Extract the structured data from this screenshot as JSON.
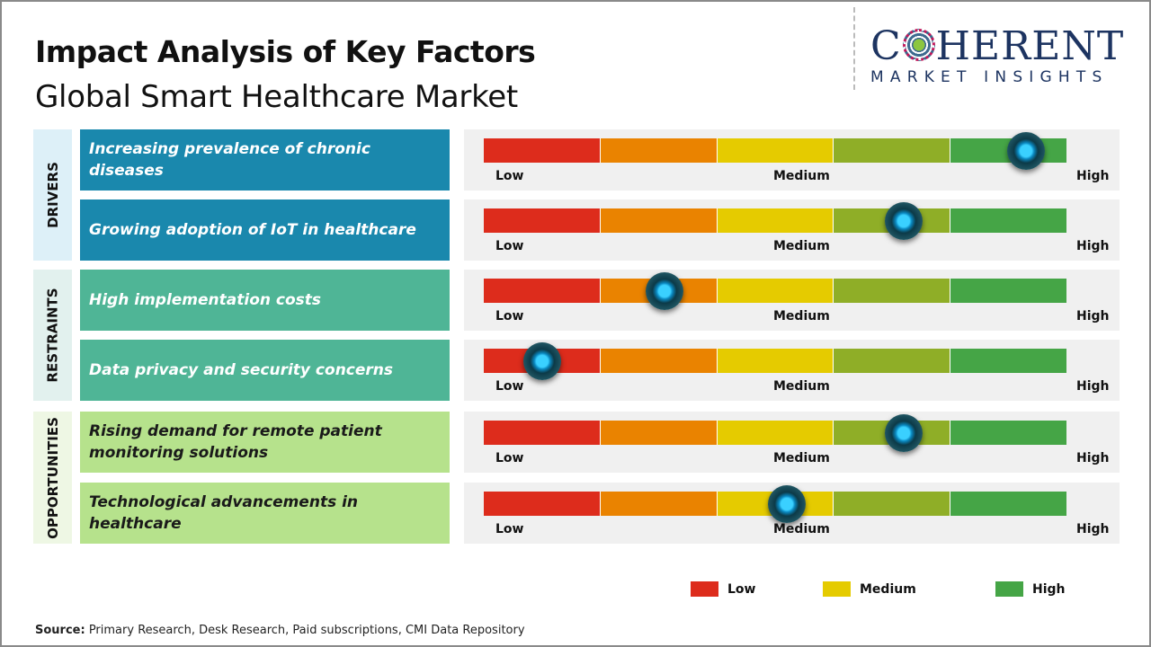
{
  "title": "Impact Analysis of Key Factors",
  "subtitle": "Global Smart Healthcare Market",
  "logo": {
    "line1_a": "C",
    "line1_b": "HERENT",
    "line2": "MARKET INSIGHTS"
  },
  "colors": {
    "scale": [
      "#dd2c1c",
      "#ea8300",
      "#e5cb00",
      "#8fae27",
      "#45a546"
    ],
    "drivers": "#1a88ad",
    "drivers_side": "#ddf0f8",
    "restraints": "#4fb596",
    "restraints_side": "#e2f1ee",
    "opportunities": "#b6e28c",
    "opportunities_side": "#eef7e4"
  },
  "chart_data": {
    "type": "gauge-scale",
    "scale_labels": {
      "low": "Low",
      "medium": "Medium",
      "high": "High"
    },
    "groups": [
      {
        "name": "DRIVERS",
        "key": "drivers",
        "items": [
          {
            "label": "Increasing prevalence of chronic diseases",
            "impact": 0.93
          },
          {
            "label": "Growing adoption of IoT in healthcare",
            "impact": 0.72
          }
        ]
      },
      {
        "name": "RESTRAINTS",
        "key": "restraints",
        "items": [
          {
            "label": "High implementation costs",
            "impact": 0.31
          },
          {
            "label": "Data privacy and security concerns",
            "impact": 0.1
          }
        ]
      },
      {
        "name": "OPPORTUNITIES",
        "key": "opportunities",
        "items": [
          {
            "label": "Rising demand for remote patient monitoring solutions",
            "impact": 0.72
          },
          {
            "label": "Technological advancements in healthcare",
            "impact": 0.52
          }
        ]
      }
    ],
    "legend": [
      {
        "label": "Low",
        "color": "#dd2c1c"
      },
      {
        "label": "Medium",
        "color": "#e5cb00"
      },
      {
        "label": "High",
        "color": "#45a546"
      }
    ]
  },
  "source": {
    "label": "Source:",
    "text": " Primary Research, Desk Research, Paid subscriptions, CMI Data Repository"
  }
}
